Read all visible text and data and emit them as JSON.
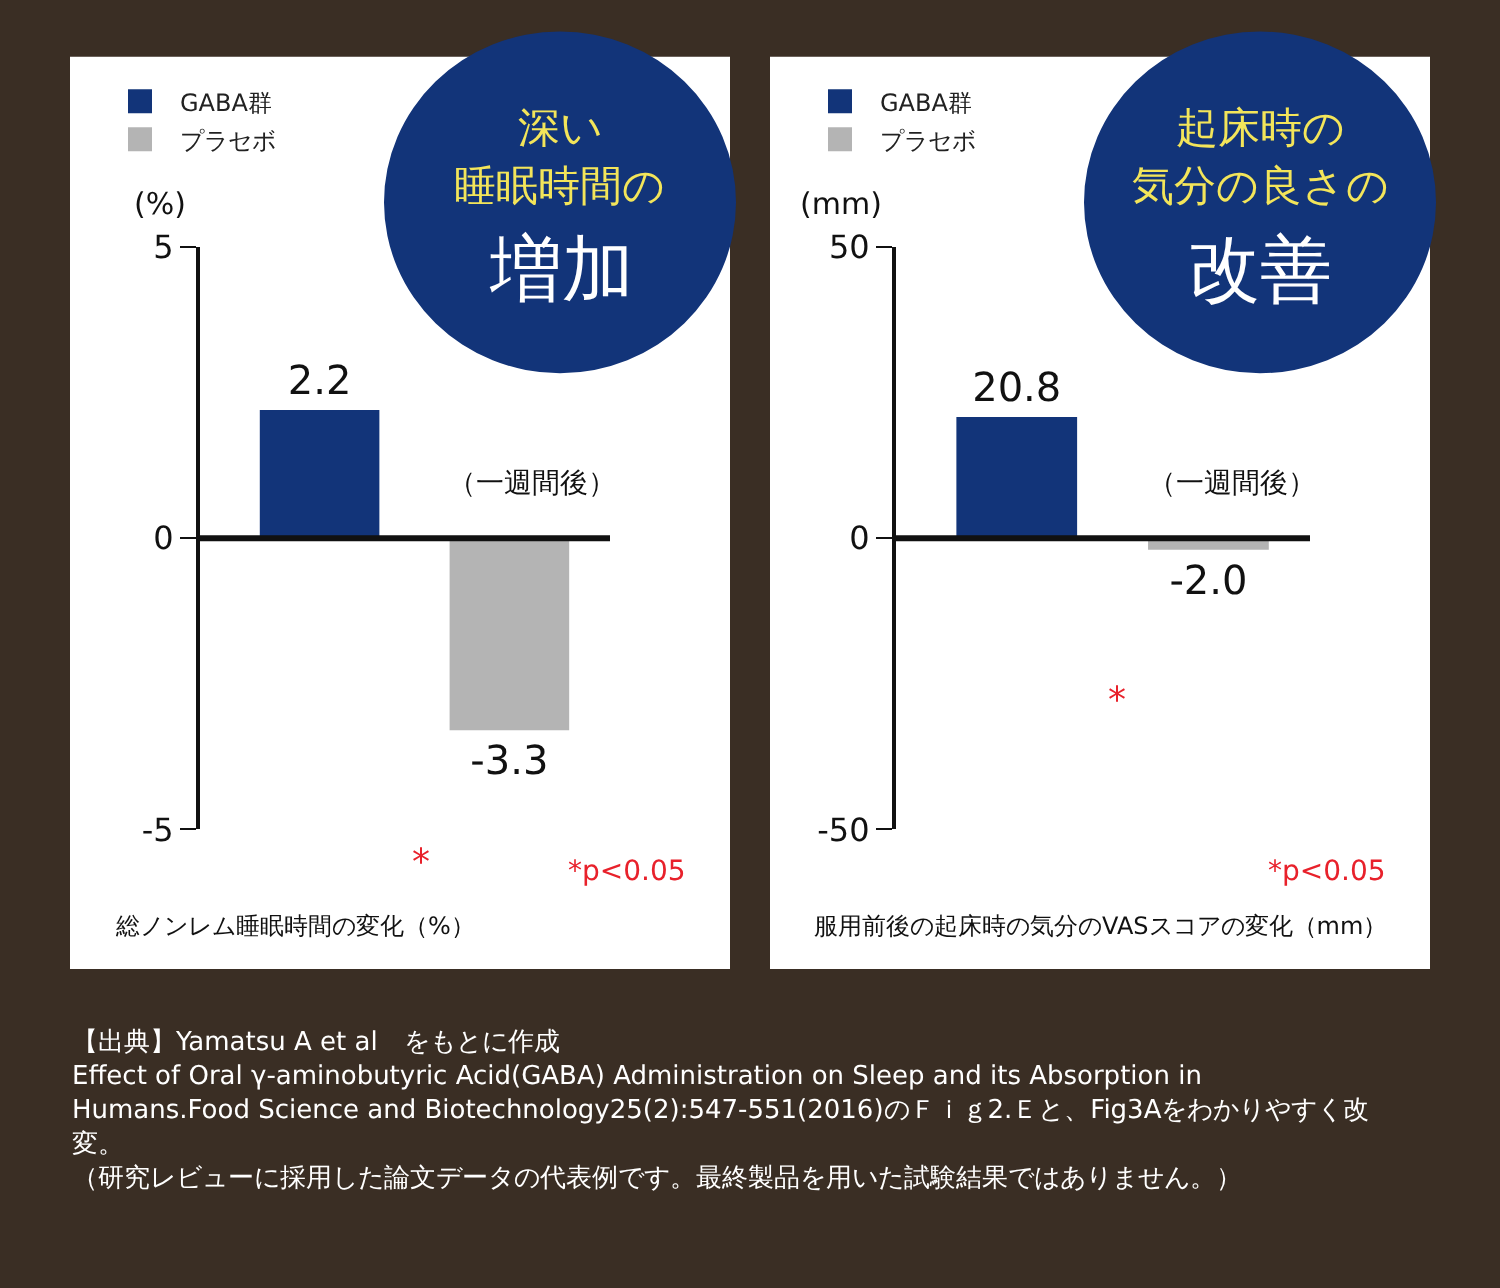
{
  "chart_data": [
    {
      "type": "bar",
      "categories": [
        null,
        null
      ],
      "ylabel": "(%)",
      "xlabel": "総ノンレム睡眠時間の変化（%）",
      "series": [
        {
          "name": "GABA群",
          "color": "#123479",
          "values": [
            2.2,
            null
          ],
          "value_labels": [
            "2.2",
            null
          ]
        },
        {
          "name": "プラセボ",
          "color": "#b4b4b4",
          "values": [
            null,
            -3.3
          ],
          "value_labels": [
            null,
            "-3.3"
          ]
        }
      ],
      "ylim": [
        -5,
        5
      ],
      "yticks": [
        -5,
        0,
        5
      ],
      "legend": "top left",
      "annotations": [
        "深い",
        "睡眠時間の",
        "増加",
        "（一週間後）",
        "*",
        "*p<0.05",
        "【出典】Yamatsu A et al　をもとに作成",
        "Effect of Oral γ-aminobutyric Acid(GABA) Administration on Sleep and its Absorption in Humans.Food Science and Biotechnology25(2):547-551(2016)のＦｉｇ2.Ｅと、Fig3Aをわかりやすく改変。",
        "（研究レビューに採用した論文データの代表例です。最終製品を用いた試験結果ではありません。）"
      ]
    },
    {
      "type": "bar",
      "categories": [
        null,
        null
      ],
      "ylabel": "(mm)",
      "xlabel": "服用前後の起床時の気分のVASスコアの変化（mm）",
      "series": [
        {
          "name": "GABA群",
          "color": "#123479",
          "values": [
            20.8,
            null
          ],
          "value_labels": [
            "20.8",
            null
          ]
        },
        {
          "name": "プラセボ",
          "color": "#b4b4b4",
          "values": [
            null,
            -2.0
          ],
          "value_labels": [
            null,
            "-2.0"
          ]
        }
      ],
      "ylim": [
        -50,
        50
      ],
      "yticks": [
        -50,
        0,
        50
      ],
      "legend": "top left",
      "annotations": [
        "起床時の",
        "気分の良さの",
        "改善",
        "（一週間後）",
        "*",
        "*p<0.05"
      ]
    }
  ]
}
